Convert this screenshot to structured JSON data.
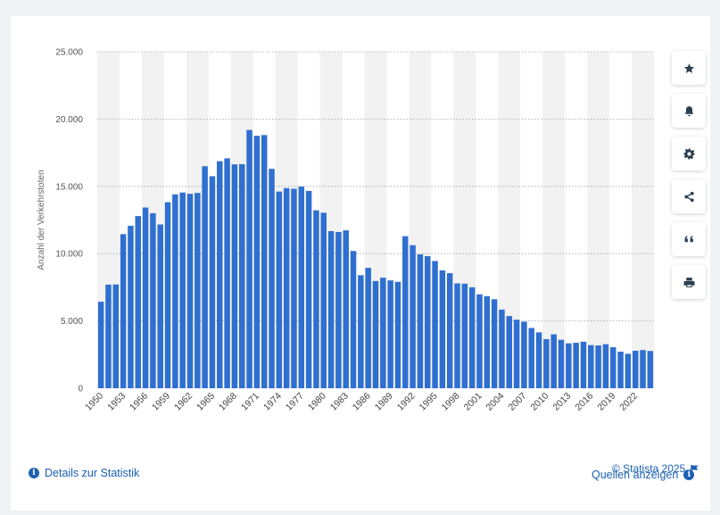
{
  "chart_data": {
    "type": "bar",
    "ylabel": "Anzahl der Verkehrstoten",
    "xlabel": "",
    "ylim": [
      0,
      25000
    ],
    "y_ticks": [
      0,
      5000,
      10000,
      15000,
      20000,
      25000
    ],
    "y_tick_labels": [
      "0",
      "5.000",
      "10.000",
      "15.000",
      "20.000",
      "25.000"
    ],
    "x_tick_labels": [
      "1950",
      "1953",
      "1956",
      "1959",
      "1962",
      "1965",
      "1968",
      "1971",
      "1974",
      "1977",
      "1980",
      "1983",
      "1986",
      "1989",
      "1992",
      "1995",
      "1998",
      "2001",
      "2004",
      "2007",
      "2010",
      "2013",
      "2016",
      "2019",
      "2022"
    ],
    "categories": [
      "1950",
      "1951",
      "1952",
      "1953",
      "1954",
      "1955",
      "1956",
      "1957",
      "1958",
      "1959",
      "1960",
      "1961",
      "1962",
      "1963",
      "1964",
      "1965",
      "1966",
      "1967",
      "1968",
      "1969",
      "1970",
      "1971",
      "1972",
      "1973",
      "1974",
      "1975",
      "1976",
      "1977",
      "1978",
      "1979",
      "1980",
      "1981",
      "1982",
      "1983",
      "1984",
      "1985",
      "1986",
      "1987",
      "1988",
      "1989",
      "1990",
      "1991",
      "1992",
      "1993",
      "1994",
      "1995",
      "1996",
      "1997",
      "1998",
      "1999",
      "2000",
      "2001",
      "2002",
      "2003",
      "2004",
      "2005",
      "2006",
      "2007",
      "2008",
      "2009",
      "2010",
      "2011",
      "2012",
      "2013",
      "2014",
      "2015",
      "2016",
      "2017",
      "2018",
      "2019",
      "2020",
      "2021",
      "2022",
      "2023",
      "2024"
    ],
    "values": [
      6428,
      7700,
      7710,
      11449,
      12071,
      12791,
      13427,
      13004,
      12169,
      13822,
      14406,
      14543,
      14445,
      14513,
      16494,
      15753,
      16868,
      17084,
      16636,
      16646,
      19193,
      18753,
      18811,
      16302,
      14614,
      14870,
      14820,
      14978,
      14662,
      13222,
      13041,
      11674,
      11608,
      11732,
      10199,
      8400,
      8948,
      7967,
      8213,
      8014,
      7906,
      11300,
      10631,
      9949,
      9814,
      9454,
      8758,
      8549,
      7792,
      7772,
      7503,
      6977,
      6842,
      6613,
      5842,
      5361,
      5091,
      4949,
      4477,
      4152,
      3648,
      4009,
      3600,
      3339,
      3377,
      3459,
      3206,
      3180,
      3275,
      3046,
      2719,
      2562,
      2788,
      2839,
      2770
    ],
    "grid": true,
    "bar_color": "#2f6fd0",
    "band_color": "#f2f2f2"
  },
  "toolbar": {
    "icons": [
      "star-icon",
      "bell-icon",
      "gear-icon",
      "share-icon",
      "quote-icon",
      "print-icon"
    ]
  },
  "footer": {
    "copyright": "© Statista 2025",
    "details_label": "Details zur Statistik",
    "sources_label": "Quellen anzeigen"
  },
  "colors": {
    "accent": "#1a5fb4"
  }
}
